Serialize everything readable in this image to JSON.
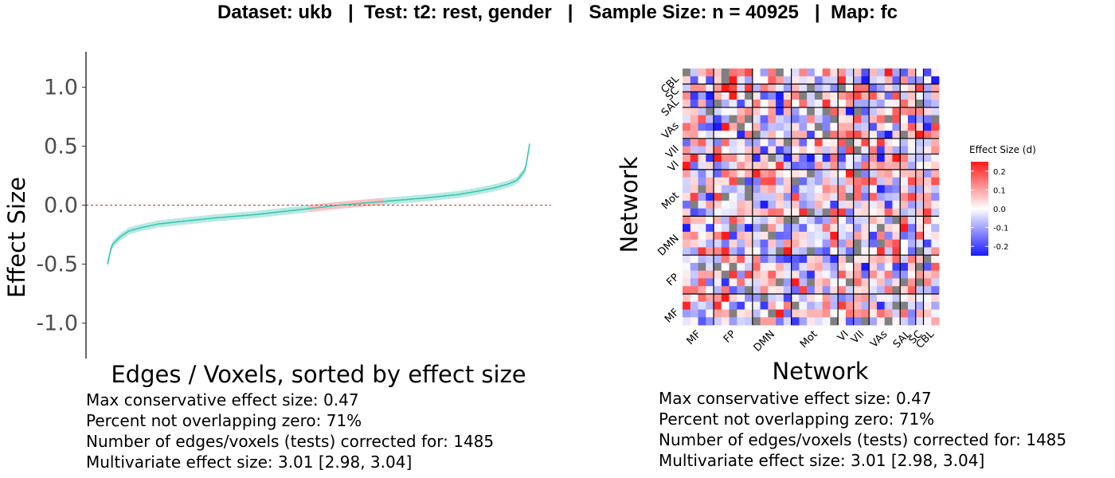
{
  "title": "Dataset: ukb   |  Test: t2: rest, gender   |   Sample Size: n = 40925   |  Map: fc",
  "chart_data": [
    {
      "type": "line",
      "title": "",
      "xlabel": "Edges / Voxels, sorted by effect size",
      "ylabel": "Effect Size",
      "ylim": [
        -1.3,
        1.3
      ],
      "yticks": [
        -1.0,
        -0.5,
        0.0,
        0.5,
        1.0
      ],
      "ytick_labels": [
        "-1.0",
        "-0.5",
        "0.0",
        "0.5",
        "1.0"
      ],
      "n_points": 1485,
      "x": [
        0,
        0.01,
        0.03,
        0.05,
        0.08,
        0.12,
        0.17,
        0.25,
        0.35,
        0.45,
        0.5,
        0.55,
        0.65,
        0.75,
        0.83,
        0.88,
        0.92,
        0.95,
        0.97,
        0.99,
        1.0
      ],
      "y": [
        -0.5,
        -0.34,
        -0.27,
        -0.22,
        -0.19,
        -0.16,
        -0.14,
        -0.11,
        -0.08,
        -0.04,
        -0.02,
        0.0,
        0.03,
        0.06,
        0.09,
        0.12,
        0.15,
        0.18,
        0.21,
        0.3,
        0.52
      ],
      "ci_halfwidth": 0.03,
      "zero_line": 0.0,
      "colors": {
        "line": "#3cc6b4",
        "band_nonzero": "#b5e9e2",
        "band_overlapping_zero": "#f8c0c0",
        "zero_line": "#c0392b"
      }
    },
    {
      "type": "heatmap",
      "xlabel": "Network",
      "ylabel": "Network",
      "x_categories": [
        "MF",
        "FP",
        "DMN",
        "Mot",
        "VI",
        "VII",
        "VAs",
        "SAL",
        "SC",
        "CBL"
      ],
      "y_categories": [
        "MF",
        "FP",
        "DMN",
        "Mot",
        "VI",
        "VII",
        "VAs",
        "SAL",
        "SC",
        "CBL"
      ],
      "network_sizes": [
        4,
        5,
        5,
        6,
        2,
        2,
        4,
        2,
        1,
        2
      ],
      "legend": {
        "title": "Effect Size (d)",
        "ticks": [
          0.2,
          0.1,
          0.0,
          -0.1,
          -0.2
        ],
        "tick_labels": [
          "0.2",
          "0.1",
          "0.0",
          "-0.1",
          "-0.2"
        ],
        "range": [
          -0.25,
          0.25
        ],
        "colors": {
          "low": "#1a1aff",
          "mid": "#ffffff",
          "high": "#ff1a1a",
          "missing": "#808080"
        }
      }
    }
  ],
  "stats_left": [
    "Max conservative effect size: 0.47",
    "Percent not overlapping zero: 71%",
    "Number of edges/voxels (tests) corrected for: 1485",
    "Multivariate effect size: 3.01 [2.98, 3.04]"
  ],
  "stats_right": [
    "Max conservative effect size: 0.47",
    "Percent not overlapping zero: 71%",
    "Number of edges/voxels (tests) corrected for: 1485",
    "Multivariate effect size: 3.01 [2.98, 3.04]"
  ]
}
